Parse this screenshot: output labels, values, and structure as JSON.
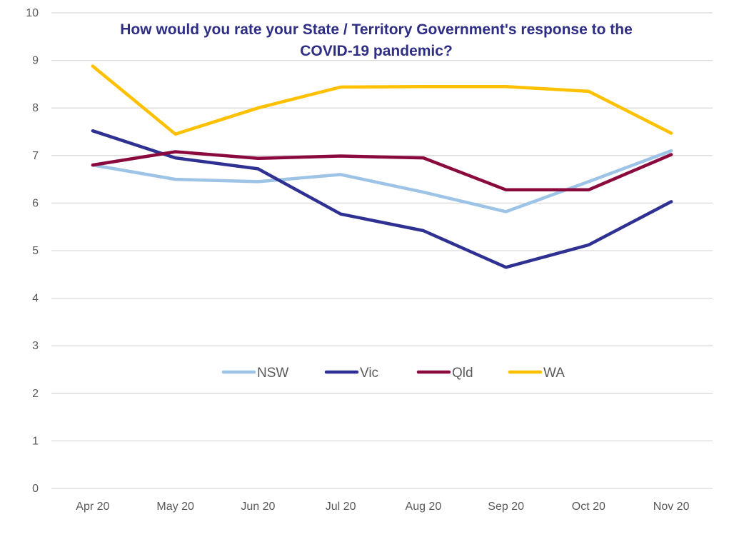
{
  "chart_data": {
    "type": "line",
    "title": [
      "How would you rate your State / Territory Government's response to the",
      "COVID-19 pandemic?"
    ],
    "xlabel": "",
    "ylabel": "",
    "categories": [
      "Apr 20",
      "May 20",
      "Jun 20",
      "Jul 20",
      "Aug 20",
      "Sep 20",
      "Oct 20",
      "Nov 20"
    ],
    "ylim": [
      0,
      10
    ],
    "yticks": [
      0,
      1,
      2,
      3,
      4,
      5,
      6,
      7,
      8,
      9,
      10
    ],
    "grid": "horizontal",
    "legend_position": "inside-middle",
    "series": [
      {
        "name": "NSW",
        "color": "#9dc3e6",
        "values": [
          6.8,
          6.5,
          6.45,
          6.6,
          6.23,
          5.82,
          6.45,
          7.1
        ]
      },
      {
        "name": "Vic",
        "color": "#2e3192",
        "values": [
          7.52,
          6.95,
          6.72,
          5.77,
          5.42,
          4.65,
          5.12,
          6.03
        ]
      },
      {
        "name": "Qld",
        "color": "#8b0a3e",
        "values": [
          6.8,
          7.08,
          6.94,
          6.99,
          6.95,
          6.28,
          6.28,
          7.02
        ]
      },
      {
        "name": "WA",
        "color": "#ffc000",
        "values": [
          8.88,
          7.45,
          8.0,
          8.44,
          8.45,
          8.45,
          8.35,
          7.47
        ]
      }
    ]
  }
}
